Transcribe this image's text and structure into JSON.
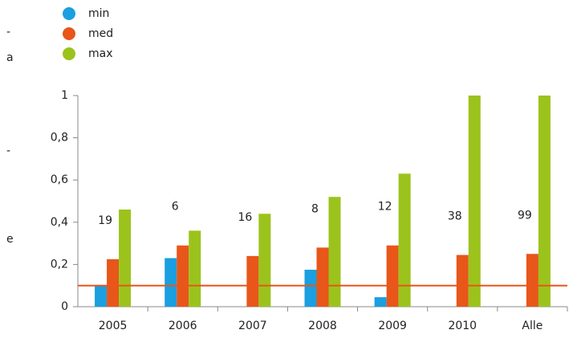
{
  "chart_data": {
    "type": "bar",
    "categories": [
      "2005",
      "2006",
      "2007",
      "2008",
      "2009",
      "2010",
      "Alle"
    ],
    "series": [
      {
        "name": "min",
        "color": "#1a9fe0",
        "values": [
          0.1,
          0.23,
          null,
          0.175,
          0.045,
          null,
          null
        ]
      },
      {
        "name": "med",
        "color": "#e8561a",
        "values": [
          0.225,
          0.29,
          0.24,
          0.28,
          0.29,
          0.245,
          0.25
        ]
      },
      {
        "name": "max",
        "color": "#9bc31c",
        "values": [
          0.46,
          0.36,
          0.44,
          0.52,
          0.63,
          1,
          1
        ]
      }
    ],
    "annotations": [
      "19",
      "6",
      "16",
      "8",
      "12",
      "38",
      "99"
    ],
    "reference_line": {
      "value": 0.1,
      "color": "#e8561a"
    },
    "ylim": [
      0,
      1
    ],
    "yticks": [
      0,
      {
        "value": 0.2,
        "label": "0,2"
      },
      {
        "value": 0.4,
        "label": "0,4"
      },
      {
        "value": 0.6,
        "label": "0,6"
      },
      {
        "value": 0.8,
        "label": "0,8"
      },
      1
    ],
    "legend": "top-left",
    "side_fragments": [
      "-",
      "a",
      "-",
      "e"
    ]
  }
}
